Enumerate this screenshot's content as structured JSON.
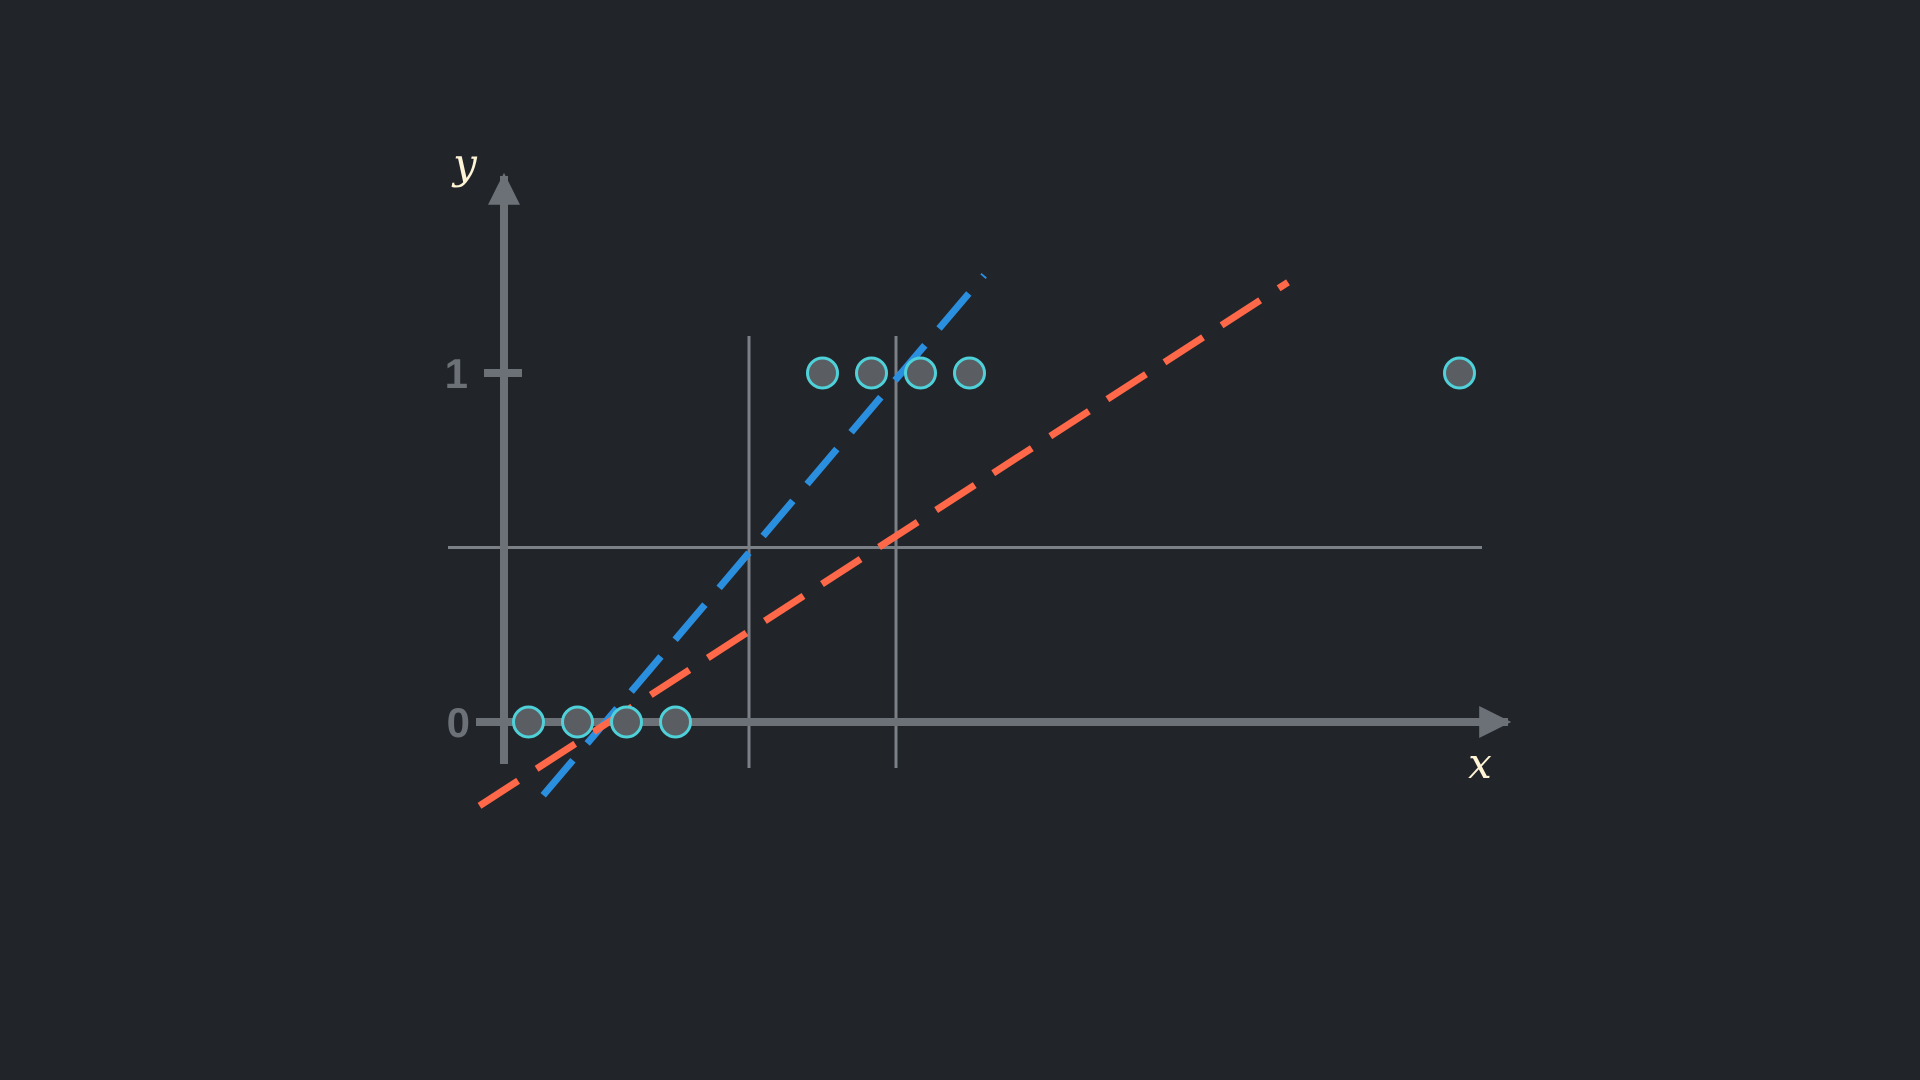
{
  "chart_data": {
    "type": "scatter",
    "title": "",
    "xlabel": "x",
    "ylabel": "y",
    "y_ticks": [
      {
        "value": 0,
        "label": "0"
      },
      {
        "value": 1,
        "label": "1"
      }
    ],
    "xlim": [
      -0.5,
      21.5
    ],
    "ylim": [
      -0.25,
      1.6
    ],
    "grid": false,
    "threshold_y": 0.5,
    "vertical_markers_x": [
      5,
      8
    ],
    "points": [
      {
        "x": 0.5,
        "y": 0
      },
      {
        "x": 1.5,
        "y": 0
      },
      {
        "x": 2.5,
        "y": 0
      },
      {
        "x": 3.5,
        "y": 0
      },
      {
        "x": 6.5,
        "y": 1
      },
      {
        "x": 7.5,
        "y": 1
      },
      {
        "x": 8.5,
        "y": 1
      },
      {
        "x": 9.5,
        "y": 1
      },
      {
        "x": 19.5,
        "y": 1
      }
    ],
    "lines": [
      {
        "x": [
          0.8,
          9.8
        ],
        "y": [
          -0.21,
          1.28
        ]
      },
      {
        "x": [
          -0.5,
          16.0
        ],
        "y": [
          -0.24,
          1.26
        ]
      }
    ],
    "colors": {
      "background": "#212429",
      "axis": "#6c7178",
      "marker_line": "#7b8087",
      "point_fill": "#5a5e63",
      "point_stroke": "#4fd1d9",
      "line_blue": "#2b8fe0",
      "line_orange": "#ff6848",
      "axis_label": "#fff5d6"
    }
  }
}
